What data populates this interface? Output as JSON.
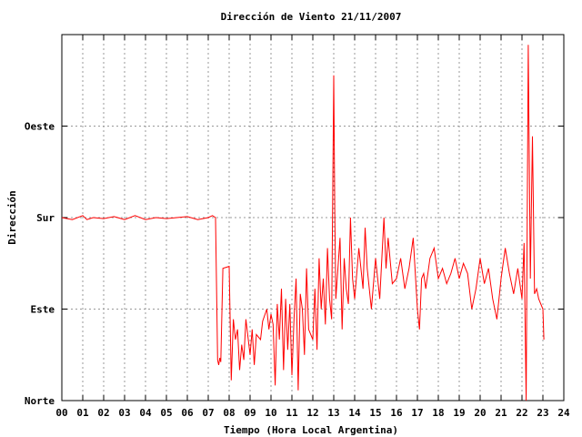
{
  "chart_data": {
    "type": "line",
    "title": "Dirección de Viento 21/11/2007",
    "xlabel": "Tiempo (Hora Local Argentina)",
    "ylabel": "Dirección",
    "xlim": [
      0,
      24
    ],
    "ylim": [
      0,
      360
    ],
    "x_ticks": [
      "00",
      "01",
      "02",
      "03",
      "04",
      "05",
      "06",
      "07",
      "08",
      "09",
      "10",
      "11",
      "12",
      "13",
      "14",
      "15",
      "16",
      "17",
      "18",
      "19",
      "20",
      "21",
      "22",
      "23",
      "24"
    ],
    "y_ticks": [
      {
        "value": 0,
        "label": "Norte"
      },
      {
        "value": 90,
        "label": "Este"
      },
      {
        "value": 180,
        "label": "Sur"
      },
      {
        "value": 270,
        "label": "Oeste"
      }
    ],
    "grid": true,
    "series": [
      {
        "color": "#ff0000",
        "x": [
          0.0,
          0.5,
          1.0,
          1.2,
          1.5,
          2.0,
          2.5,
          3.0,
          3.5,
          4.0,
          4.5,
          5.0,
          5.5,
          6.0,
          6.5,
          7.0,
          7.2,
          7.35,
          7.45,
          7.5,
          7.55,
          7.6,
          7.7,
          8.0,
          8.1,
          8.2,
          8.3,
          8.4,
          8.5,
          8.6,
          8.7,
          8.8,
          9.0,
          9.1,
          9.2,
          9.3,
          9.5,
          9.6,
          9.8,
          9.9,
          10.0,
          10.1,
          10.2,
          10.3,
          10.4,
          10.5,
          10.6,
          10.7,
          10.8,
          10.9,
          11.0,
          11.1,
          11.2,
          11.3,
          11.4,
          11.5,
          11.6,
          11.7,
          11.8,
          12.0,
          12.1,
          12.2,
          12.3,
          12.4,
          12.5,
          12.6,
          12.7,
          12.8,
          12.9,
          13.0,
          13.05,
          13.1,
          13.2,
          13.3,
          13.4,
          13.5,
          13.6,
          13.7,
          13.8,
          13.9,
          14.0,
          14.2,
          14.4,
          14.5,
          14.6,
          14.8,
          15.0,
          15.2,
          15.4,
          15.5,
          15.6,
          15.8,
          16.0,
          16.2,
          16.4,
          16.6,
          16.8,
          17.0,
          17.1,
          17.2,
          17.3,
          17.4,
          17.6,
          17.8,
          18.0,
          18.2,
          18.4,
          18.6,
          18.8,
          19.0,
          19.2,
          19.4,
          19.6,
          19.8,
          20.0,
          20.2,
          20.4,
          20.6,
          20.8,
          21.0,
          21.2,
          21.4,
          21.6,
          21.8,
          22.0,
          22.1,
          22.2,
          22.3,
          22.4,
          22.5,
          22.6,
          22.7,
          22.8,
          23.0,
          23.05
        ],
        "y": [
          180,
          178,
          182,
          178,
          180,
          179,
          181,
          178,
          182,
          178,
          180,
          179,
          180,
          181,
          178,
          180,
          182,
          180,
          40,
          35,
          42,
          38,
          130,
          132,
          20,
          80,
          60,
          70,
          30,
          55,
          40,
          80,
          45,
          70,
          35,
          65,
          60,
          78,
          90,
          70,
          85,
          75,
          15,
          95,
          60,
          110,
          30,
          100,
          50,
          95,
          25,
          80,
          120,
          10,
          105,
          90,
          45,
          130,
          70,
          60,
          110,
          50,
          140,
          90,
          120,
          75,
          150,
          100,
          80,
          320,
          180,
          100,
          130,
          160,
          70,
          140,
          110,
          95,
          180,
          120,
          100,
          150,
          110,
          170,
          130,
          90,
          140,
          100,
          180,
          130,
          160,
          115,
          120,
          140,
          110,
          130,
          160,
          90,
          70,
          120,
          125,
          110,
          140,
          150,
          120,
          130,
          115,
          125,
          140,
          120,
          135,
          125,
          90,
          110,
          140,
          115,
          130,
          100,
          80,
          120,
          150,
          125,
          105,
          130,
          100,
          155,
          0,
          350,
          120,
          260,
          105,
          110,
          100,
          90,
          60
        ]
      }
    ]
  }
}
